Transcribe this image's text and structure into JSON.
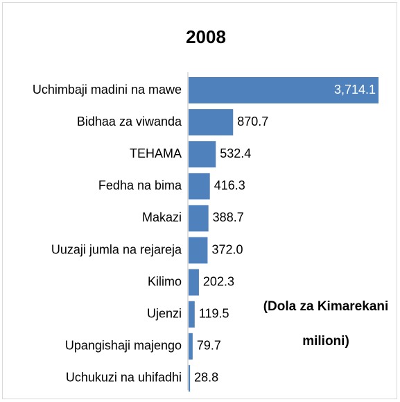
{
  "chart_data": {
    "type": "bar",
    "orientation": "horizontal",
    "title": "2008",
    "categories": [
      "Uchimbaji madini na mawe",
      "Bidhaa za viwanda",
      "TEHAMA",
      "Fedha na bima",
      "Makazi",
      "Uuzaji jumla na rejareja",
      "Kilimo",
      "Ujenzi",
      "Upangishaji majengo",
      "Uchukuzi na uhifadhi"
    ],
    "values": [
      3714.1,
      870.7,
      532.4,
      416.3,
      388.7,
      372.0,
      202.3,
      119.5,
      79.7,
      28.8
    ],
    "value_labels": [
      "3,714.1",
      "870.7",
      "532.4",
      "416.3",
      "388.7",
      "372.0",
      "202.3",
      "119.5",
      "79.7",
      "28.8"
    ],
    "color": "#4f81bd",
    "annotation": [
      "(Dola za Kimarekani",
      "milioni)"
    ]
  }
}
